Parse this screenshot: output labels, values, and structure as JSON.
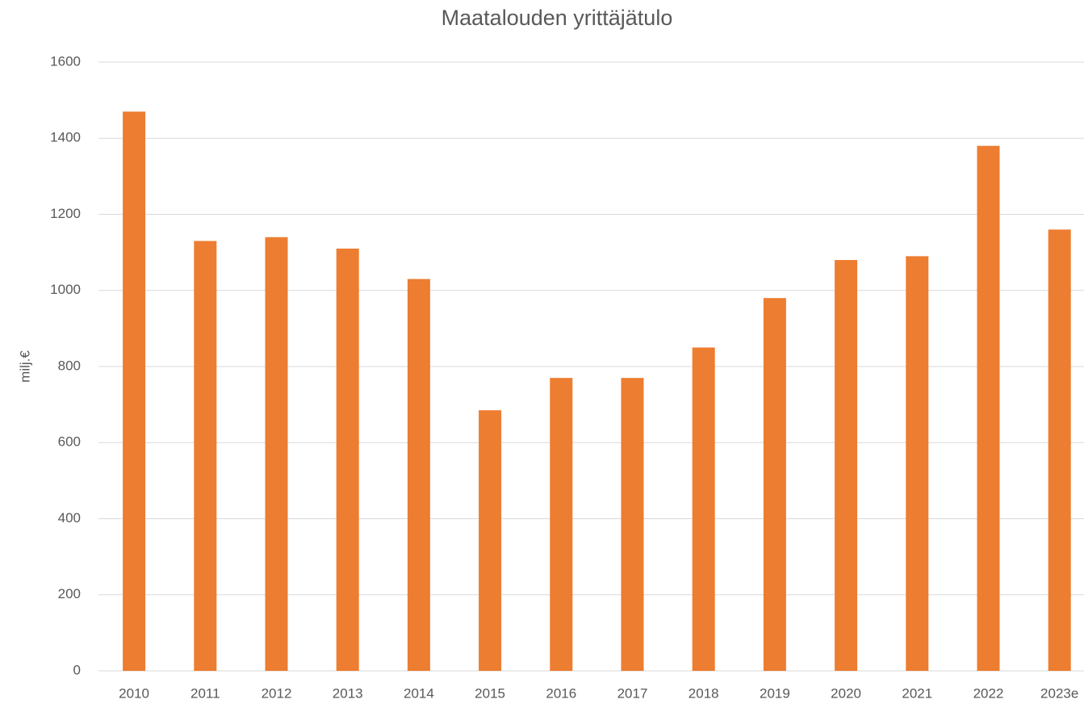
{
  "chart_data": {
    "type": "bar",
    "title": "Maatalouden yrittäjätulo",
    "y_label": "milj.€",
    "categories": [
      "2010",
      "2011",
      "2012",
      "2013",
      "2014",
      "2015",
      "2016",
      "2017",
      "2018",
      "2019",
      "2020",
      "2021",
      "2022",
      "2023e"
    ],
    "values": [
      1470,
      1130,
      1140,
      1110,
      1030,
      685,
      770,
      770,
      850,
      980,
      1080,
      1090,
      1380,
      1160
    ],
    "color": "#ed7d31",
    "ylim": [
      0,
      1600
    ],
    "yticks": [
      0,
      200,
      400,
      600,
      800,
      1000,
      1200,
      1400,
      1600
    ],
    "grid": true
  }
}
